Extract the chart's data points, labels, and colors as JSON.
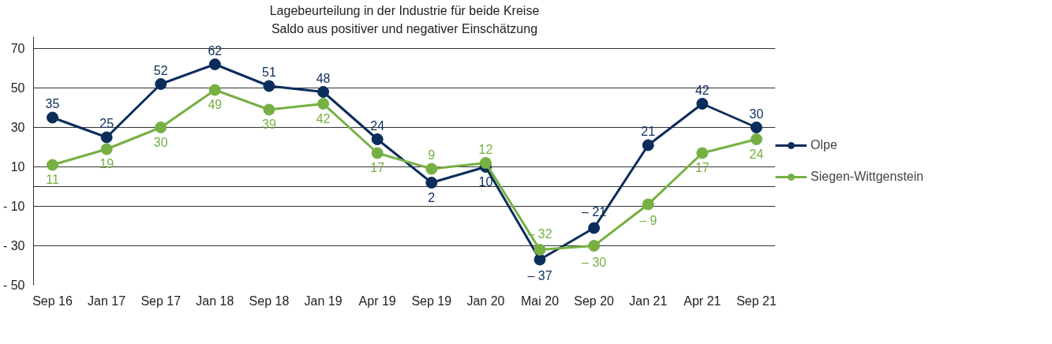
{
  "chart_data": {
    "type": "line",
    "title": "Lagebeurteilung in der Industrie für beide Kreise",
    "subtitle": "Saldo aus positiver und negativer Einschätzung",
    "categories": [
      "Sep 16",
      "Jan 17",
      "Sep 17",
      "Jan 18",
      "Sep 18",
      "Jan 19",
      "Apr 19",
      "Sep 19",
      "Jan 20",
      "Mai 20",
      "Sep 20",
      "Jan 21",
      "Apr 21",
      "Sep 21"
    ],
    "series": [
      {
        "name": "Olpe",
        "color": "#0b2d5b",
        "values": [
          35,
          25,
          52,
          62,
          51,
          48,
          24,
          2,
          10,
          -37,
          -21,
          21,
          42,
          30
        ],
        "value_labels": [
          "35",
          "25",
          "52",
          "62",
          "51",
          "48",
          "24",
          "2",
          "10",
          "– 37",
          "– 21",
          "21",
          "42",
          "30"
        ]
      },
      {
        "name": "Siegen-Wittgenstein",
        "color": "#76b043",
        "values": [
          11,
          19,
          30,
          49,
          39,
          42,
          17,
          9,
          12,
          -32,
          -30,
          -9,
          17,
          24
        ],
        "value_labels": [
          "11",
          "19",
          "30",
          "49",
          "39",
          "42",
          "17",
          "9",
          "12",
          "– 32",
          "– 30",
          "– 9",
          "17",
          "24"
        ]
      }
    ],
    "ylim": [
      -50,
      76
    ],
    "yticks": [
      70,
      50,
      30,
      10,
      {
        "value": 0,
        "label": null
      },
      {
        "value": -10,
        "label": "- 10"
      },
      {
        "value": -30,
        "label": "- 30"
      },
      {
        "value": -50,
        "label": "- 50"
      }
    ],
    "grid": "y",
    "legend": "right",
    "marker": "circle",
    "line_style": "solid"
  }
}
